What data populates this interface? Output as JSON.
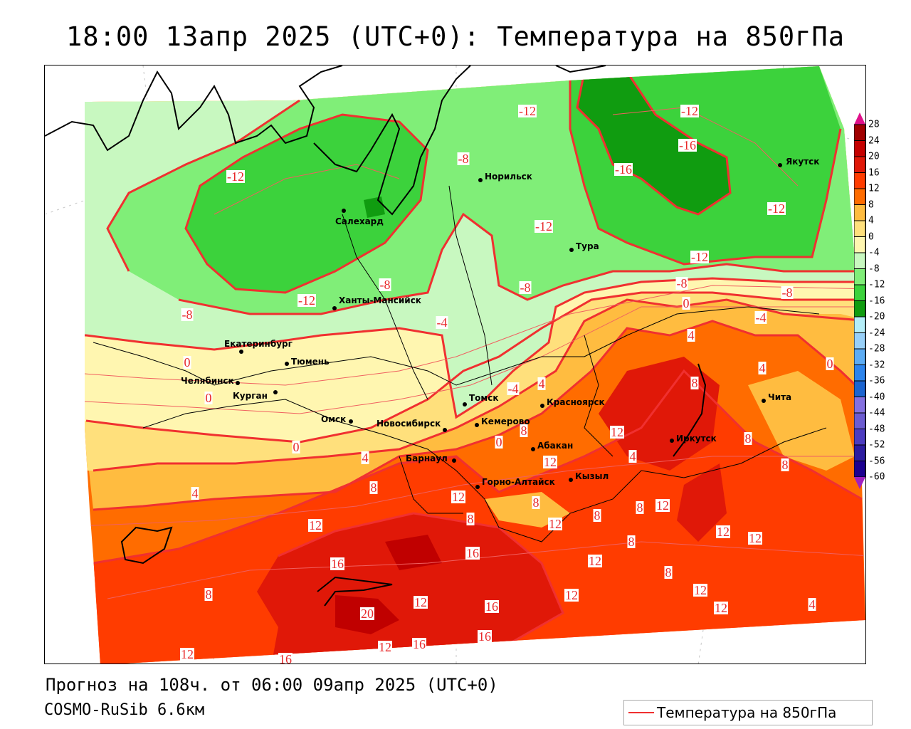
{
  "title": "18:00 13апр 2025 (UTC+0): Температура на 850гПа",
  "forecast_info": "Прогноз на 108ч. от 06:00 09апр 2025 (UTC+0)",
  "model_info": "COSMO-RuSib 6.6км",
  "legend": {
    "label": "Температура на 850гПа",
    "line_color": "#f03030"
  },
  "colorbar": {
    "ticks": [
      "28",
      "24",
      "20",
      "16",
      "12",
      "8",
      "4",
      "0",
      "-4",
      "-8",
      "-12",
      "-16",
      "-20",
      "-24",
      "-28",
      "-32",
      "-36",
      "-40",
      "-44",
      "-48",
      "-52",
      "-56",
      "-60"
    ],
    "bin_colors": [
      "#a00000",
      "#c40000",
      "#e01808",
      "#ff3c00",
      "#ff6c00",
      "#ffbc40",
      "#ffe07c",
      "#fff6b0",
      "#c8f8c0",
      "#80ee78",
      "#3cd23c",
      "#109c10",
      "#b4eef8",
      "#98d0f8",
      "#5cacf4",
      "#2c84ec",
      "#1c64d0",
      "#8470e0",
      "#6c5cd0",
      "#4c3cc0",
      "#2c1ca0",
      "#1c0090"
    ],
    "over_color": "#e0108a",
    "under_color": "#a020c0"
  },
  "cities": [
    {
      "name": "Якутск"
    },
    {
      "name": "Норильск"
    },
    {
      "name": "Салехард"
    },
    {
      "name": "Тура"
    },
    {
      "name": "Ханты-Мансийск"
    },
    {
      "name": "Екатеринбург"
    },
    {
      "name": "Тюмень"
    },
    {
      "name": "Челябинск"
    },
    {
      "name": "Курган"
    },
    {
      "name": "Омск"
    },
    {
      "name": "Новосибирск"
    },
    {
      "name": "Томск"
    },
    {
      "name": "Кемерово"
    },
    {
      "name": "Красноярск"
    },
    {
      "name": "Абакан"
    },
    {
      "name": "Барнаул"
    },
    {
      "name": "Горно-Алтайск"
    },
    {
      "name": "Кызыл"
    },
    {
      "name": "Иркутск"
    },
    {
      "name": "Чита"
    }
  ],
  "contour_labels": [
    "-12",
    "-12",
    "-16",
    "-16",
    "-12",
    "-8",
    "-12",
    "-12",
    "-12",
    "-8",
    "-8",
    "-8",
    "-12",
    "-8",
    "-4",
    "-8",
    "-4",
    "0",
    "4",
    "4",
    "0",
    "8",
    "0",
    "0",
    "-4",
    "4",
    "0",
    "8",
    "12",
    "4",
    "8",
    "8",
    "0",
    "4",
    "8",
    "4",
    "12",
    "12",
    "8",
    "8",
    "8",
    "8",
    "12",
    "12",
    "12",
    "8",
    "12",
    "12",
    "16",
    "16",
    "12",
    "8",
    "8",
    "12",
    "12",
    "12",
    "16",
    "12",
    "4",
    "20",
    "16",
    "12",
    "16",
    "12",
    "16"
  ]
}
